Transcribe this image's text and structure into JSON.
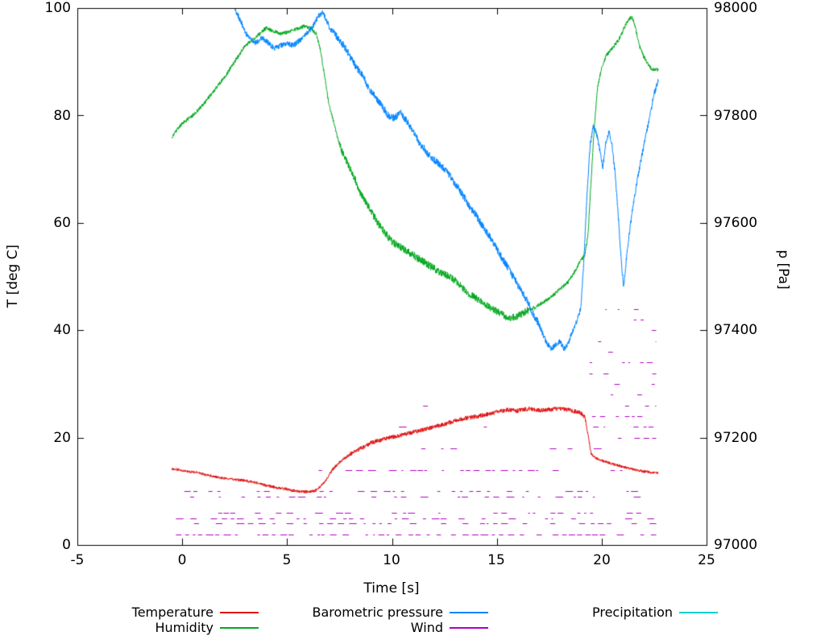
{
  "chart_data": {
    "type": "line",
    "title": "",
    "xlabel": "Time [s]",
    "ylabel_left": "T [deg C]",
    "ylabel_right": "p [Pa]",
    "xlim": [
      -5,
      25
    ],
    "ylim_left": [
      0,
      100
    ],
    "ylim_right": [
      97000,
      98000
    ],
    "xticks": [
      -5,
      0,
      5,
      10,
      15,
      20,
      25
    ],
    "yticks_left": [
      0,
      20,
      40,
      60,
      80,
      100
    ],
    "yticks_right": [
      97000,
      97200,
      97400,
      97600,
      97800,
      98000
    ],
    "grid": false,
    "legend_position": "below",
    "series": [
      {
        "name": "Temperature",
        "color": "#e01010",
        "axis": "left",
        "style": "noisy-line",
        "noise": 0.25,
        "noise_zones": [
          [
            8,
            19.2,
            1.6
          ]
        ],
        "points": [
          [
            -0.5,
            14.2
          ],
          [
            0,
            13.9
          ],
          [
            0.5,
            13.6
          ],
          [
            1,
            13.2
          ],
          [
            1.5,
            12.8
          ],
          [
            2,
            12.4
          ],
          [
            2.5,
            12.2
          ],
          [
            3,
            12.0
          ],
          [
            3.5,
            11.6
          ],
          [
            4,
            11.1
          ],
          [
            4.5,
            10.7
          ],
          [
            5,
            10.4
          ],
          [
            5.5,
            10.0
          ],
          [
            6,
            9.9
          ],
          [
            6.3,
            10.1
          ],
          [
            6.6,
            10.9
          ],
          [
            6.9,
            12.4
          ],
          [
            7.2,
            14.2
          ],
          [
            7.5,
            15.4
          ],
          [
            7.8,
            16.3
          ],
          [
            8.1,
            17.1
          ],
          [
            8.4,
            17.8
          ],
          [
            8.7,
            18.4
          ],
          [
            9,
            19.0
          ],
          [
            9.3,
            19.4
          ],
          [
            9.6,
            19.7
          ],
          [
            10,
            20.1
          ],
          [
            10.5,
            20.5
          ],
          [
            11,
            21.0
          ],
          [
            11.5,
            21.5
          ],
          [
            12,
            22.0
          ],
          [
            12.5,
            22.5
          ],
          [
            13,
            23.1
          ],
          [
            13.5,
            23.6
          ],
          [
            14,
            23.9
          ],
          [
            14.5,
            24.3
          ],
          [
            15,
            24.8
          ],
          [
            15.5,
            25.2
          ],
          [
            16,
            25.0
          ],
          [
            16.5,
            25.4
          ],
          [
            17,
            25.1
          ],
          [
            17.5,
            25.2
          ],
          [
            18,
            25.4
          ],
          [
            18.5,
            25.1
          ],
          [
            19,
            24.6
          ],
          [
            19.2,
            23.8
          ],
          [
            19.35,
            20.5
          ],
          [
            19.5,
            17.0
          ],
          [
            19.7,
            16.2
          ],
          [
            20,
            15.7
          ],
          [
            20.4,
            15.2
          ],
          [
            20.8,
            14.8
          ],
          [
            21.2,
            14.4
          ],
          [
            21.6,
            14.0
          ],
          [
            22,
            13.7
          ],
          [
            22.4,
            13.5
          ],
          [
            22.7,
            13.4
          ]
        ]
      },
      {
        "name": "Humidity",
        "color": "#00a81e",
        "axis": "left",
        "style": "noisy-line",
        "noise": 0.35,
        "noise_zones": [
          [
            7.5,
            16.5,
            2.0
          ]
        ],
        "points": [
          [
            -0.5,
            76
          ],
          [
            0,
            78.5
          ],
          [
            0.5,
            80
          ],
          [
            1,
            82
          ],
          [
            1.5,
            84.5
          ],
          [
            2,
            87
          ],
          [
            2.5,
            90
          ],
          [
            3,
            93
          ],
          [
            3.5,
            94.5
          ],
          [
            4,
            96.3
          ],
          [
            4.3,
            95.8
          ],
          [
            4.7,
            95.2
          ],
          [
            5,
            95.5
          ],
          [
            5.4,
            96.0
          ],
          [
            5.8,
            96.6
          ],
          [
            6.1,
            96.3
          ],
          [
            6.4,
            95.2
          ],
          [
            6.6,
            92
          ],
          [
            6.8,
            87
          ],
          [
            7,
            82
          ],
          [
            7.2,
            79
          ],
          [
            7.4,
            76
          ],
          [
            7.6,
            73.5
          ],
          [
            7.9,
            71
          ],
          [
            8.2,
            68.5
          ],
          [
            8.5,
            65.5
          ],
          [
            8.8,
            63.5
          ],
          [
            9.1,
            61.5
          ],
          [
            9.4,
            59.5
          ],
          [
            9.7,
            58
          ],
          [
            10,
            56.5
          ],
          [
            10.4,
            55.5
          ],
          [
            10.8,
            54.5
          ],
          [
            11.2,
            53.5
          ],
          [
            11.6,
            52.5
          ],
          [
            12,
            51.5
          ],
          [
            12.4,
            50.5
          ],
          [
            12.8,
            50
          ],
          [
            13.2,
            48.5
          ],
          [
            13.6,
            47
          ],
          [
            14,
            46
          ],
          [
            14.4,
            45
          ],
          [
            14.8,
            44
          ],
          [
            15.2,
            43
          ],
          [
            15.6,
            42.2
          ],
          [
            16,
            42.6
          ],
          [
            16.4,
            43.6
          ],
          [
            16.8,
            44.2
          ],
          [
            17.2,
            45.2
          ],
          [
            17.6,
            46.2
          ],
          [
            18,
            47.6
          ],
          [
            18.4,
            49
          ],
          [
            18.8,
            51.5
          ],
          [
            19,
            53
          ],
          [
            19.2,
            54
          ],
          [
            19.35,
            58
          ],
          [
            19.5,
            68
          ],
          [
            19.65,
            78
          ],
          [
            19.8,
            85
          ],
          [
            20,
            89
          ],
          [
            20.2,
            91
          ],
          [
            20.5,
            92.5
          ],
          [
            20.8,
            94
          ],
          [
            21.1,
            96.5
          ],
          [
            21.3,
            98
          ],
          [
            21.45,
            98.3
          ],
          [
            21.6,
            96.5
          ],
          [
            21.8,
            93
          ],
          [
            22,
            91
          ],
          [
            22.2,
            89.5
          ],
          [
            22.4,
            88.5
          ],
          [
            22.7,
            88.5
          ]
        ]
      },
      {
        "name": "Barometric pressure",
        "color": "#0084ff",
        "axis": "right",
        "style": "noisy-line",
        "noise": 5,
        "noise_zones": [
          [
            7,
            17,
            1.4
          ]
        ],
        "points": [
          [
            2.45,
            98010
          ],
          [
            2.6,
            97990
          ],
          [
            2.8,
            97975
          ],
          [
            3,
            97955
          ],
          [
            3.2,
            97945
          ],
          [
            3.5,
            97935
          ],
          [
            3.8,
            97945
          ],
          [
            4.1,
            97935
          ],
          [
            4.4,
            97925
          ],
          [
            4.7,
            97930
          ],
          [
            5,
            97935
          ],
          [
            5.3,
            97930
          ],
          [
            5.6,
            97940
          ],
          [
            5.9,
            97950
          ],
          [
            6.2,
            97965
          ],
          [
            6.5,
            97985
          ],
          [
            6.7,
            97992
          ],
          [
            6.9,
            97975
          ],
          [
            7.1,
            97960
          ],
          [
            7.4,
            97945
          ],
          [
            7.7,
            97930
          ],
          [
            8,
            97910
          ],
          [
            8.3,
            97890
          ],
          [
            8.6,
            97875
          ],
          [
            8.9,
            97850
          ],
          [
            9.2,
            97835
          ],
          [
            9.5,
            97820
          ],
          [
            9.8,
            97800
          ],
          [
            10.1,
            97795
          ],
          [
            10.4,
            97805
          ],
          [
            10.7,
            97790
          ],
          [
            11,
            97770
          ],
          [
            11.3,
            97750
          ],
          [
            11.6,
            97735
          ],
          [
            11.9,
            97720
          ],
          [
            12.2,
            97712
          ],
          [
            12.5,
            97700
          ],
          [
            12.8,
            97685
          ],
          [
            13.1,
            97668
          ],
          [
            13.4,
            97650
          ],
          [
            13.7,
            97630
          ],
          [
            14,
            97615
          ],
          [
            14.3,
            97595
          ],
          [
            14.6,
            97578
          ],
          [
            14.9,
            97558
          ],
          [
            15.2,
            97538
          ],
          [
            15.5,
            97518
          ],
          [
            15.8,
            97498
          ],
          [
            16.1,
            97478
          ],
          [
            16.4,
            97458
          ],
          [
            16.7,
            97432
          ],
          [
            17,
            97412
          ],
          [
            17.2,
            97392
          ],
          [
            17.4,
            97375
          ],
          [
            17.6,
            97365
          ],
          [
            17.8,
            97372
          ],
          [
            18,
            97380
          ],
          [
            18.2,
            97365
          ],
          [
            18.4,
            97375
          ],
          [
            18.6,
            97398
          ],
          [
            18.8,
            97415
          ],
          [
            19,
            97440
          ],
          [
            19.15,
            97530
          ],
          [
            19.3,
            97655
          ],
          [
            19.45,
            97745
          ],
          [
            19.6,
            97780
          ],
          [
            19.75,
            97768
          ],
          [
            19.9,
            97738
          ],
          [
            20.05,
            97702
          ],
          [
            20.2,
            97748
          ],
          [
            20.35,
            97772
          ],
          [
            20.5,
            97742
          ],
          [
            20.65,
            97688
          ],
          [
            20.8,
            97608
          ],
          [
            20.95,
            97518
          ],
          [
            21.05,
            97482
          ],
          [
            21.2,
            97542
          ],
          [
            21.35,
            97592
          ],
          [
            21.5,
            97632
          ],
          [
            21.7,
            97680
          ],
          [
            21.9,
            97722
          ],
          [
            22.1,
            97762
          ],
          [
            22.3,
            97800
          ],
          [
            22.5,
            97840
          ],
          [
            22.7,
            97865
          ]
        ]
      },
      {
        "name": "Wind",
        "color": "#b000c0",
        "axis": "left",
        "style": "dashes",
        "levels": [
          {
            "y": 2,
            "t0": -0.3,
            "t1": 22.6,
            "density": 0.85
          },
          {
            "y": 4,
            "t0": -0.3,
            "t1": 22.6,
            "density": 0.6
          },
          {
            "y": 5,
            "t0": -0.3,
            "t1": 22.6,
            "density": 0.5
          },
          {
            "y": 6,
            "t0": -0.3,
            "t1": 22.6,
            "density": 0.55
          },
          {
            "y": 9,
            "t0": -0.3,
            "t1": 22.6,
            "density": 0.45
          },
          {
            "y": 10,
            "t0": -0.3,
            "t1": 22.6,
            "density": 0.55
          },
          {
            "y": 14,
            "t0": 6.5,
            "t1": 22.6,
            "density": 0.5
          },
          {
            "y": 18,
            "t0": 8.0,
            "t1": 22.6,
            "density": 0.3
          },
          {
            "y": 22,
            "t0": 10.0,
            "t1": 18.8,
            "density": 0.07
          },
          {
            "y": 26,
            "t0": 10.5,
            "t1": 18.5,
            "density": 0.05
          },
          {
            "y": 30,
            "t0": 10.5,
            "t1": 18.0,
            "density": 0.05
          }
        ],
        "burst": {
          "t0": 19.15,
          "t1": 22.6,
          "levels": [
            20,
            22,
            24,
            26,
            28,
            30,
            32,
            34,
            36,
            38,
            40,
            42,
            44
          ],
          "density_bottom": 0.5,
          "density_top": 0.12
        }
      },
      {
        "name": "Precipitation",
        "color": "#00d0d0",
        "axis": "left",
        "style": "noisy-line",
        "noise": 0,
        "points": []
      }
    ]
  }
}
